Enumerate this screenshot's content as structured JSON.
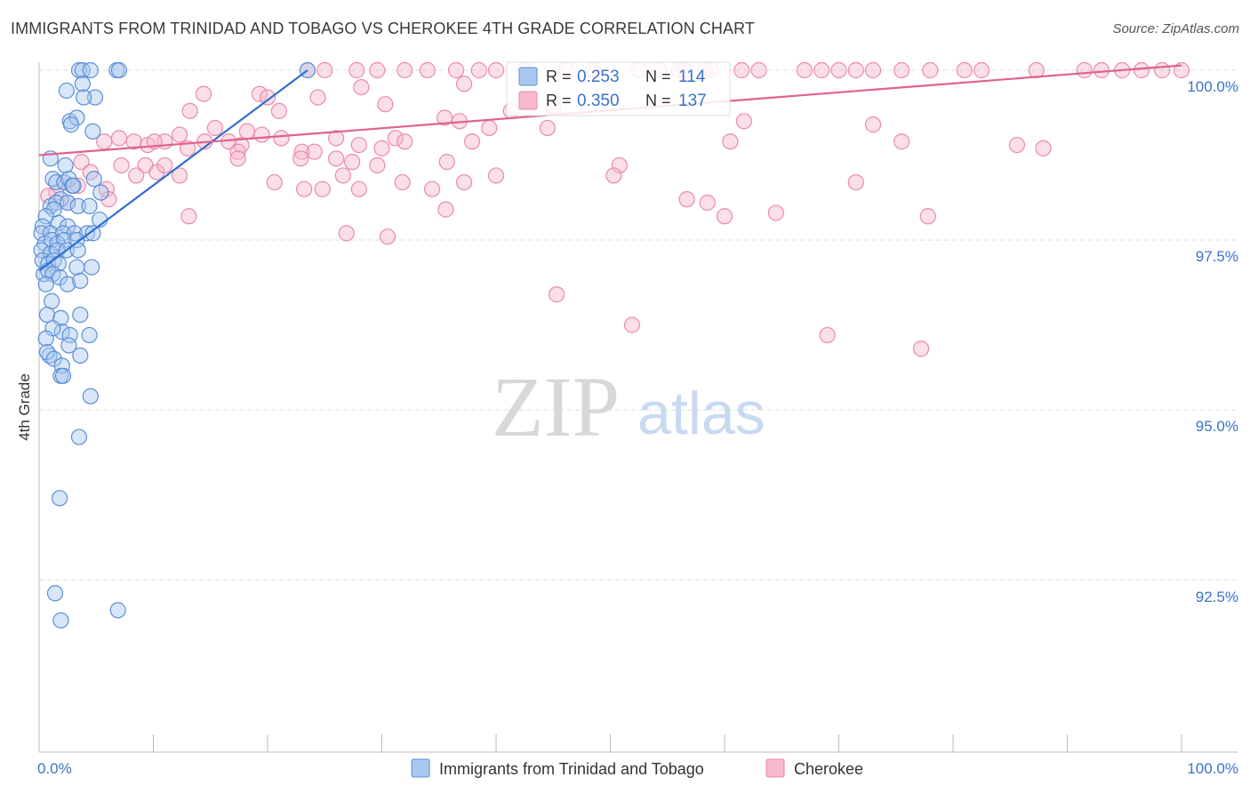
{
  "title": "IMMIGRANTS FROM TRINIDAD AND TOBAGO VS CHEROKEE 4TH GRADE CORRELATION CHART",
  "source": "Source: ZipAtlas.com",
  "watermark": {
    "zip": "ZIP",
    "atlas": "atlas"
  },
  "colors": {
    "blue_fill": "#a9c8f0",
    "blue_stroke": "#5b8fd6",
    "blue_line": "#2e6fd0",
    "pink_fill": "#f6b9cd",
    "pink_stroke": "#e98aaa",
    "pink_line": "#e0628e",
    "axis_text": "#3a72c8",
    "grid": "#d9d9d9"
  },
  "legend_top": [
    {
      "r_label": "R = ",
      "r_value": "0.253",
      "n_label": "N = ",
      "n_value": "114",
      "color": "blue"
    },
    {
      "r_label": "R = ",
      "r_value": "0.350",
      "n_label": "N = ",
      "n_value": "137",
      "color": "pink"
    }
  ],
  "legend_bottom": [
    {
      "label": "Immigrants from Trinidad and Tobago",
      "color": "blue"
    },
    {
      "label": "Cherokee",
      "color": "pink"
    }
  ],
  "chart_data": {
    "type": "scatter",
    "title": "IMMIGRANTS FROM TRINIDAD AND TOBAGO VS CHEROKEE 4TH GRADE CORRELATION CHART",
    "xlabel": "",
    "ylabel": "4th Grade",
    "xlim": [
      0,
      100
    ],
    "ylim": [
      90.0,
      100.4
    ],
    "x_tick_labels": [
      "0.0%",
      "100.0%"
    ],
    "y_ticks": [
      100.0,
      97.5,
      95.0,
      92.5
    ],
    "y_tick_labels": [
      "100.0%",
      "97.5%",
      "95.0%",
      "92.5%"
    ],
    "series": [
      {
        "name": "Immigrants from Trinidad and Tobago",
        "color": "blue",
        "R": 0.253,
        "N": 114,
        "trend": {
          "x": [
            0.0,
            23.5
          ],
          "y": [
            97.05,
            100.0
          ]
        },
        "points": [
          [
            3.5,
            100.0
          ],
          [
            3.8,
            100.0
          ],
          [
            4.5,
            100.0
          ],
          [
            6.8,
            100.0
          ],
          [
            7.0,
            100.0
          ],
          [
            23.5,
            100.0
          ],
          [
            3.8,
            99.8
          ],
          [
            2.4,
            99.7
          ],
          [
            4.9,
            99.6
          ],
          [
            3.9,
            99.6
          ],
          [
            2.7,
            99.25
          ],
          [
            3.3,
            99.3
          ],
          [
            2.8,
            99.2
          ],
          [
            4.7,
            99.1
          ],
          [
            1.0,
            98.7
          ],
          [
            2.3,
            98.6
          ],
          [
            1.2,
            98.4
          ],
          [
            1.5,
            98.35
          ],
          [
            2.2,
            98.35
          ],
          [
            2.6,
            98.4
          ],
          [
            2.9,
            98.3
          ],
          [
            1.9,
            98.1
          ],
          [
            3.0,
            98.3
          ],
          [
            4.8,
            98.4
          ],
          [
            1.0,
            98.0
          ],
          [
            1.5,
            98.05
          ],
          [
            2.5,
            98.05
          ],
          [
            3.4,
            98.0
          ],
          [
            1.3,
            97.95
          ],
          [
            4.4,
            98.0
          ],
          [
            5.4,
            98.2
          ],
          [
            0.6,
            97.85
          ],
          [
            1.7,
            97.75
          ],
          [
            0.3,
            97.7
          ],
          [
            2.5,
            97.7
          ],
          [
            5.3,
            97.8
          ],
          [
            0.2,
            97.6
          ],
          [
            1.0,
            97.6
          ],
          [
            2.1,
            97.6
          ],
          [
            3.1,
            97.6
          ],
          [
            4.2,
            97.6
          ],
          [
            4.7,
            97.6
          ],
          [
            0.5,
            97.45
          ],
          [
            1.1,
            97.5
          ],
          [
            1.6,
            97.45
          ],
          [
            2.2,
            97.5
          ],
          [
            3.3,
            97.5
          ],
          [
            0.2,
            97.35
          ],
          [
            1.0,
            97.3
          ],
          [
            1.6,
            97.35
          ],
          [
            2.4,
            97.35
          ],
          [
            3.4,
            97.35
          ],
          [
            0.3,
            97.2
          ],
          [
            0.8,
            97.15
          ],
          [
            1.3,
            97.2
          ],
          [
            1.7,
            97.15
          ],
          [
            3.3,
            97.1
          ],
          [
            4.6,
            97.1
          ],
          [
            0.4,
            97.0
          ],
          [
            0.8,
            97.05
          ],
          [
            1.2,
            97.0
          ],
          [
            1.8,
            96.95
          ],
          [
            0.6,
            96.85
          ],
          [
            2.5,
            96.85
          ],
          [
            3.6,
            96.9
          ],
          [
            1.1,
            96.6
          ],
          [
            0.7,
            96.4
          ],
          [
            1.9,
            96.35
          ],
          [
            3.6,
            96.4
          ],
          [
            2.0,
            96.15
          ],
          [
            1.2,
            96.2
          ],
          [
            2.7,
            96.1
          ],
          [
            4.4,
            96.1
          ],
          [
            0.6,
            96.05
          ],
          [
            2.6,
            95.95
          ],
          [
            0.9,
            95.8
          ],
          [
            0.7,
            95.85
          ],
          [
            3.6,
            95.8
          ],
          [
            1.3,
            95.75
          ],
          [
            2.0,
            95.65
          ],
          [
            1.9,
            95.5
          ],
          [
            2.1,
            95.5
          ],
          [
            4.5,
            95.2
          ],
          [
            3.5,
            94.6
          ],
          [
            1.8,
            93.7
          ],
          [
            1.4,
            92.3
          ],
          [
            6.9,
            92.05
          ],
          [
            1.9,
            91.9
          ]
        ]
      },
      {
        "name": "Cherokee",
        "color": "pink",
        "R": 0.35,
        "N": 137,
        "trend": {
          "x": [
            0.0,
            100.0
          ],
          "y": [
            98.75,
            100.07
          ]
        },
        "points": [
          [
            23.5,
            100.0
          ],
          [
            25.0,
            100.0
          ],
          [
            27.8,
            100.0
          ],
          [
            29.6,
            100.0
          ],
          [
            32.0,
            100.0
          ],
          [
            34.0,
            100.0
          ],
          [
            36.5,
            100.0
          ],
          [
            38.5,
            100.0
          ],
          [
            40.0,
            100.0
          ],
          [
            42.5,
            100.0
          ],
          [
            46.2,
            100.0
          ],
          [
            48.5,
            100.0
          ],
          [
            52.5,
            100.0
          ],
          [
            54.3,
            100.0
          ],
          [
            56.0,
            100.0
          ],
          [
            58.3,
            100.0
          ],
          [
            61.5,
            100.0
          ],
          [
            63.0,
            100.0
          ],
          [
            67.0,
            100.0
          ],
          [
            68.5,
            100.0
          ],
          [
            70.0,
            100.0
          ],
          [
            71.5,
            100.0
          ],
          [
            73.0,
            100.0
          ],
          [
            75.5,
            100.0
          ],
          [
            78.0,
            100.0
          ],
          [
            81.0,
            100.0
          ],
          [
            82.5,
            100.0
          ],
          [
            87.3,
            100.0
          ],
          [
            91.5,
            100.0
          ],
          [
            93.0,
            100.0
          ],
          [
            94.8,
            100.0
          ],
          [
            96.5,
            100.0
          ],
          [
            98.3,
            100.0
          ],
          [
            100.0,
            100.0
          ],
          [
            56.5,
            100.0
          ],
          [
            58.8,
            100.0
          ],
          [
            37.2,
            99.8
          ],
          [
            28.2,
            99.75
          ],
          [
            14.4,
            99.65
          ],
          [
            19.3,
            99.65
          ],
          [
            20.0,
            99.6
          ],
          [
            24.4,
            99.6
          ],
          [
            30.3,
            99.5
          ],
          [
            45.0,
            99.45
          ],
          [
            13.2,
            99.4
          ],
          [
            21.0,
            99.4
          ],
          [
            41.3,
            99.4
          ],
          [
            35.5,
            99.3
          ],
          [
            36.8,
            99.25
          ],
          [
            61.7,
            99.25
          ],
          [
            73.0,
            99.2
          ],
          [
            39.4,
            99.15
          ],
          [
            44.5,
            99.15
          ],
          [
            15.4,
            99.15
          ],
          [
            12.3,
            99.05
          ],
          [
            18.2,
            99.1
          ],
          [
            26.0,
            99.0
          ],
          [
            31.2,
            99.0
          ],
          [
            32.0,
            98.95
          ],
          [
            37.9,
            98.95
          ],
          [
            11.0,
            98.95
          ],
          [
            14.5,
            98.95
          ],
          [
            17.7,
            98.9
          ],
          [
            16.6,
            98.95
          ],
          [
            19.5,
            99.05
          ],
          [
            7.0,
            99.0
          ],
          [
            21.2,
            99.0
          ],
          [
            5.7,
            98.95
          ],
          [
            8.3,
            98.95
          ],
          [
            9.5,
            98.9
          ],
          [
            10.1,
            98.95
          ],
          [
            13.0,
            98.85
          ],
          [
            17.4,
            98.8
          ],
          [
            23.0,
            98.8
          ],
          [
            28.0,
            98.9
          ],
          [
            30.0,
            98.85
          ],
          [
            35.7,
            98.65
          ],
          [
            50.8,
            98.6
          ],
          [
            60.5,
            98.95
          ],
          [
            75.5,
            98.95
          ],
          [
            85.6,
            98.9
          ],
          [
            87.9,
            98.85
          ],
          [
            17.4,
            98.7
          ],
          [
            22.9,
            98.7
          ],
          [
            24.1,
            98.8
          ],
          [
            26.0,
            98.7
          ],
          [
            27.4,
            98.65
          ],
          [
            29.6,
            98.6
          ],
          [
            3.7,
            98.65
          ],
          [
            7.2,
            98.6
          ],
          [
            9.3,
            98.6
          ],
          [
            10.3,
            98.5
          ],
          [
            11.0,
            98.6
          ],
          [
            2.2,
            98.35
          ],
          [
            4.5,
            98.5
          ],
          [
            8.5,
            98.45
          ],
          [
            12.3,
            98.45
          ],
          [
            20.6,
            98.35
          ],
          [
            23.2,
            98.25
          ],
          [
            24.8,
            98.25
          ],
          [
            26.6,
            98.45
          ],
          [
            28.0,
            98.25
          ],
          [
            31.8,
            98.35
          ],
          [
            34.4,
            98.25
          ],
          [
            37.2,
            98.35
          ],
          [
            40.0,
            98.45
          ],
          [
            50.3,
            98.45
          ],
          [
            56.7,
            98.1
          ],
          [
            71.5,
            98.35
          ],
          [
            1.5,
            98.2
          ],
          [
            3.4,
            98.3
          ],
          [
            5.9,
            98.25
          ],
          [
            6.1,
            98.1
          ],
          [
            0.8,
            98.15
          ],
          [
            2.5,
            98.05
          ],
          [
            58.5,
            98.05
          ],
          [
            60.0,
            97.85
          ],
          [
            64.5,
            97.9
          ],
          [
            77.8,
            97.85
          ],
          [
            13.1,
            97.85
          ],
          [
            26.9,
            97.6
          ],
          [
            30.5,
            97.55
          ],
          [
            35.6,
            97.95
          ],
          [
            45.3,
            96.7
          ],
          [
            51.9,
            96.25
          ],
          [
            69.0,
            96.1
          ],
          [
            77.2,
            95.9
          ]
        ]
      }
    ]
  }
}
